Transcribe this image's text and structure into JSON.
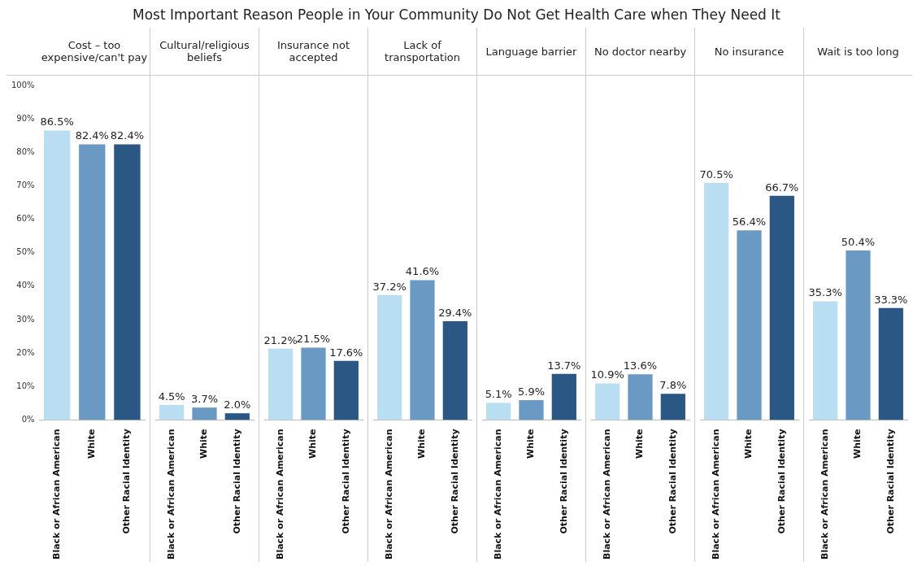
{
  "chart_data": [
    {
      "type": "other",
      "title": "Most Important Reason People in Your Community Do Not Get Health Care when They Need It"
    },
    {
      "type": "bar",
      "subtitle": "Cost – too expensive/can't pay",
      "categories": [
        "Black or African American",
        "White",
        "Other Racial Identity"
      ],
      "values": [
        86.5,
        82.4,
        82.4
      ],
      "value_labels": [
        "86.5%",
        "82.4%",
        "82.4%"
      ],
      "colors": [
        "#b9ddf1",
        "#6a9ac4",
        "#2a5783"
      ],
      "ylim": [
        0,
        100
      ],
      "yticks": [
        {
          "value": 0,
          "label": "0%"
        },
        {
          "value": 10,
          "label": "10%"
        },
        {
          "value": 20,
          "label": "20%"
        },
        {
          "value": 30,
          "label": "30%"
        },
        {
          "value": 40,
          "label": "40%"
        },
        {
          "value": 50,
          "label": "50%"
        },
        {
          "value": 60,
          "label": "60%"
        },
        {
          "value": 70,
          "label": "70%"
        },
        {
          "value": 80,
          "label": "80%"
        },
        {
          "value": 90,
          "label": "90%"
        },
        {
          "value": 100,
          "label": "100%"
        }
      ]
    },
    {
      "type": "bar",
      "subtitle": "Cultural/religious beliefs",
      "categories": [
        "Black or African American",
        "White",
        "Other Racial Identity"
      ],
      "values": [
        4.5,
        3.7,
        2.0
      ],
      "value_labels": [
        "4.5%",
        "3.7%",
        "2.0%"
      ],
      "colors": [
        "#b9ddf1",
        "#6a9ac4",
        "#2a5783"
      ],
      "ylim": [
        0,
        100
      ],
      "tick_labels": "x"
    },
    {
      "type": "bar",
      "subtitle": "Insurance not accepted",
      "categories": [
        "Black or African American",
        "White",
        "Other Racial Identity"
      ],
      "values": [
        21.2,
        21.5,
        17.6
      ],
      "value_labels": [
        "21.2%",
        "21.5%",
        "17.6%"
      ],
      "colors": [
        "#b9ddf1",
        "#6a9ac4",
        "#2a5783"
      ],
      "ylim": [
        0,
        100
      ],
      "tick_labels": "x"
    },
    {
      "type": "bar",
      "subtitle": "Lack of transportation",
      "categories": [
        "Black or African American",
        "White",
        "Other Racial Identity"
      ],
      "values": [
        37.2,
        41.6,
        29.4
      ],
      "value_labels": [
        "37.2%",
        "41.6%",
        "29.4%"
      ],
      "colors": [
        "#b9ddf1",
        "#6a9ac4",
        "#2a5783"
      ],
      "ylim": [
        0,
        100
      ],
      "tick_labels": "x"
    },
    {
      "type": "bar",
      "subtitle": "Language barrier",
      "categories": [
        "Black or African American",
        "White",
        "Other Racial Identity"
      ],
      "values": [
        5.1,
        5.9,
        13.7
      ],
      "value_labels": [
        "5.1%",
        "5.9%",
        "13.7%"
      ],
      "colors": [
        "#b9ddf1",
        "#6a9ac4",
        "#2a5783"
      ],
      "ylim": [
        0,
        100
      ],
      "tick_labels": "x"
    },
    {
      "type": "bar",
      "subtitle": "No doctor nearby",
      "categories": [
        "Black or African American",
        "White",
        "Other Racial Identity"
      ],
      "values": [
        10.9,
        13.6,
        7.8
      ],
      "value_labels": [
        "10.9%",
        "13.6%",
        "7.8%"
      ],
      "colors": [
        "#b9ddf1",
        "#6a9ac4",
        "#2a5783"
      ],
      "ylim": [
        0,
        100
      ],
      "tick_labels": "x"
    },
    {
      "type": "bar",
      "subtitle": "No insurance",
      "categories": [
        "Black or African American",
        "White",
        "Other Racial Identity"
      ],
      "values": [
        70.5,
        56.4,
        66.7
      ],
      "value_labels": [
        "70.5%",
        "56.4%",
        "66.7%"
      ],
      "colors": [
        "#b9ddf1",
        "#6a9ac4",
        "#2a5783"
      ],
      "ylim": [
        0,
        100
      ],
      "tick_labels": "x"
    },
    {
      "type": "bar",
      "subtitle": "Wait is too long",
      "categories": [
        "Black or African American",
        "White",
        "Other Racial Identity"
      ],
      "values": [
        35.3,
        50.4,
        33.3
      ],
      "value_labels": [
        "35.3%",
        "50.4%",
        "33.3%"
      ],
      "colors": [
        "#b9ddf1",
        "#6a9ac4",
        "#2a5783"
      ],
      "ylim": [
        0,
        100
      ],
      "tick_labels": "x"
    }
  ]
}
